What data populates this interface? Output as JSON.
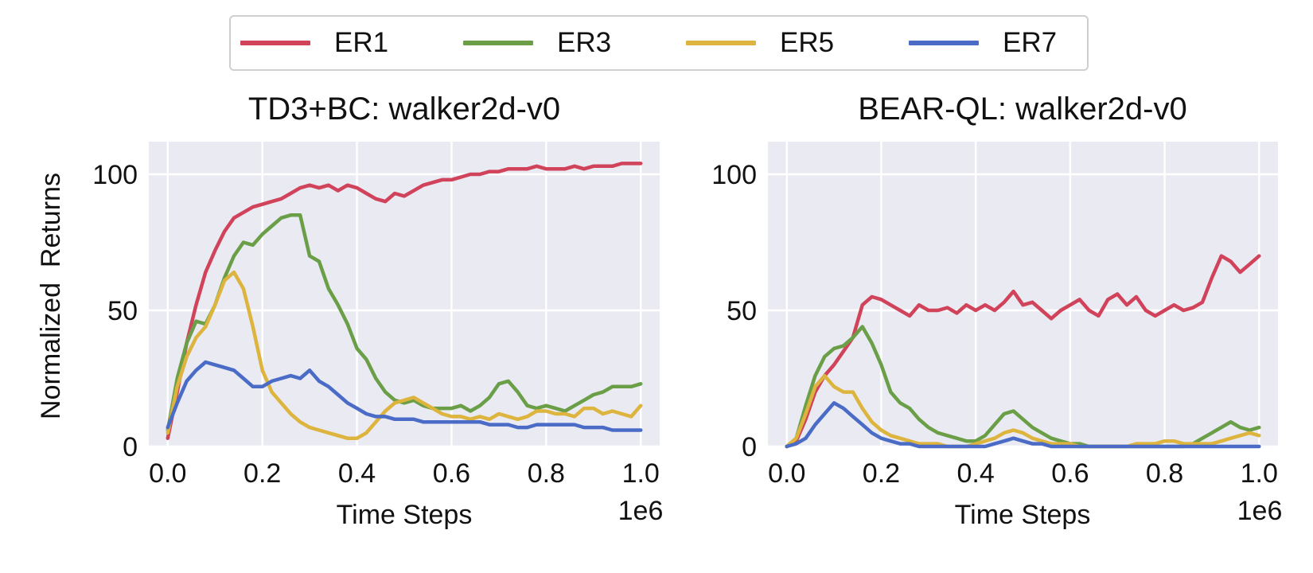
{
  "legend": {
    "items": [
      {
        "label": "ER1",
        "color": "#d1435b"
      },
      {
        "label": "ER3",
        "color": "#6a9f48"
      },
      {
        "label": "ER5",
        "color": "#ddb43e"
      },
      {
        "label": "ER7",
        "color": "#4a6bc6"
      }
    ]
  },
  "chart_data": [
    {
      "type": "line",
      "title": "TD3+BC: walker2d-v0",
      "xlabel": "Time Steps",
      "ylabel": "Normalized  Returns",
      "x_offset_text": "1e6",
      "xlim": [
        -0.04,
        1.04
      ],
      "ylim": [
        0,
        112
      ],
      "xticks": [
        0.0,
        0.2,
        0.4,
        0.6,
        0.8,
        1.0
      ],
      "xtick_labels": [
        "0.0",
        "0.2",
        "0.4",
        "0.6",
        "0.8",
        "1.0"
      ],
      "yticks": [
        0,
        50,
        100
      ],
      "ytick_labels": [
        "0",
        "50",
        "100"
      ],
      "grid": true,
      "legend": "top-center",
      "series": [
        {
          "name": "ER1",
          "color": "#d1435b",
          "x": [
            0.0,
            0.02,
            0.04,
            0.06,
            0.08,
            0.1,
            0.12,
            0.14,
            0.16,
            0.18,
            0.2,
            0.22,
            0.24,
            0.26,
            0.28,
            0.3,
            0.32,
            0.34,
            0.36,
            0.38,
            0.4,
            0.42,
            0.44,
            0.46,
            0.48,
            0.5,
            0.52,
            0.54,
            0.56,
            0.58,
            0.6,
            0.62,
            0.64,
            0.66,
            0.68,
            0.7,
            0.72,
            0.74,
            0.76,
            0.78,
            0.8,
            0.82,
            0.84,
            0.86,
            0.88,
            0.9,
            0.92,
            0.94,
            0.96,
            0.98,
            1.0
          ],
          "y": [
            3,
            20,
            38,
            52,
            64,
            72,
            79,
            84,
            86,
            88,
            89,
            90,
            91,
            93,
            95,
            96,
            95,
            96,
            94,
            96,
            95,
            93,
            91,
            90,
            93,
            92,
            94,
            96,
            97,
            98,
            98,
            99,
            100,
            100,
            101,
            101,
            102,
            102,
            102,
            103,
            102,
            102,
            102,
            103,
            102,
            103,
            103,
            103,
            104,
            104,
            104
          ]
        },
        {
          "name": "ER3",
          "color": "#6a9f48",
          "x": [
            0.0,
            0.02,
            0.04,
            0.06,
            0.08,
            0.1,
            0.12,
            0.14,
            0.16,
            0.18,
            0.2,
            0.22,
            0.24,
            0.26,
            0.28,
            0.3,
            0.32,
            0.34,
            0.36,
            0.38,
            0.4,
            0.42,
            0.44,
            0.46,
            0.48,
            0.5,
            0.52,
            0.54,
            0.56,
            0.58,
            0.6,
            0.62,
            0.64,
            0.66,
            0.68,
            0.7,
            0.72,
            0.74,
            0.76,
            0.78,
            0.8,
            0.82,
            0.84,
            0.86,
            0.88,
            0.9,
            0.92,
            0.94,
            0.96,
            0.98,
            1.0
          ],
          "y": [
            6,
            25,
            38,
            46,
            45,
            52,
            62,
            70,
            75,
            74,
            78,
            81,
            84,
            85,
            85,
            70,
            68,
            58,
            52,
            45,
            36,
            32,
            25,
            20,
            17,
            16,
            17,
            15,
            14,
            14,
            14,
            15,
            13,
            15,
            18,
            23,
            24,
            20,
            15,
            14,
            15,
            14,
            13,
            15,
            17,
            19,
            20,
            22,
            22,
            22,
            23
          ]
        },
        {
          "name": "ER5",
          "color": "#ddb43e",
          "x": [
            0.0,
            0.02,
            0.04,
            0.06,
            0.08,
            0.1,
            0.12,
            0.14,
            0.16,
            0.18,
            0.2,
            0.22,
            0.24,
            0.26,
            0.28,
            0.3,
            0.32,
            0.34,
            0.36,
            0.38,
            0.4,
            0.42,
            0.44,
            0.46,
            0.48,
            0.5,
            0.52,
            0.54,
            0.56,
            0.58,
            0.6,
            0.62,
            0.64,
            0.66,
            0.68,
            0.7,
            0.72,
            0.74,
            0.76,
            0.78,
            0.8,
            0.82,
            0.84,
            0.86,
            0.88,
            0.9,
            0.92,
            0.94,
            0.96,
            0.98,
            1.0
          ],
          "y": [
            5,
            22,
            33,
            40,
            44,
            52,
            61,
            64,
            58,
            44,
            28,
            20,
            16,
            12,
            9,
            7,
            6,
            5,
            4,
            3,
            3,
            5,
            9,
            13,
            16,
            17,
            18,
            16,
            14,
            12,
            11,
            11,
            10,
            11,
            10,
            12,
            11,
            10,
            11,
            13,
            13,
            12,
            12,
            11,
            14,
            14,
            12,
            13,
            12,
            11,
            15
          ]
        },
        {
          "name": "ER7",
          "color": "#4a6bc6",
          "x": [
            0.0,
            0.02,
            0.04,
            0.06,
            0.08,
            0.1,
            0.12,
            0.14,
            0.16,
            0.18,
            0.2,
            0.22,
            0.24,
            0.26,
            0.28,
            0.3,
            0.32,
            0.34,
            0.36,
            0.38,
            0.4,
            0.42,
            0.44,
            0.46,
            0.48,
            0.5,
            0.52,
            0.54,
            0.56,
            0.58,
            0.6,
            0.62,
            0.64,
            0.66,
            0.68,
            0.7,
            0.72,
            0.74,
            0.76,
            0.78,
            0.8,
            0.82,
            0.84,
            0.86,
            0.88,
            0.9,
            0.92,
            0.94,
            0.96,
            0.98,
            1.0
          ],
          "y": [
            7,
            16,
            24,
            28,
            31,
            30,
            29,
            28,
            25,
            22,
            22,
            24,
            25,
            26,
            25,
            28,
            24,
            22,
            19,
            16,
            14,
            12,
            11,
            11,
            10,
            10,
            10,
            9,
            9,
            9,
            9,
            9,
            9,
            9,
            8,
            8,
            8,
            7,
            7,
            8,
            8,
            8,
            8,
            8,
            7,
            7,
            7,
            6,
            6,
            6,
            6
          ]
        }
      ]
    },
    {
      "type": "line",
      "title": "BEAR-QL: walker2d-v0",
      "xlabel": "Time Steps",
      "ylabel": "",
      "x_offset_text": "1e6",
      "xlim": [
        -0.04,
        1.04
      ],
      "ylim": [
        0,
        112
      ],
      "xticks": [
        0.0,
        0.2,
        0.4,
        0.6,
        0.8,
        1.0
      ],
      "xtick_labels": [
        "0.0",
        "0.2",
        "0.4",
        "0.6",
        "0.8",
        "1.0"
      ],
      "yticks": [
        0,
        50,
        100
      ],
      "ytick_labels": [
        "0",
        "50",
        "100"
      ],
      "grid": true,
      "legend": "top-center",
      "series": [
        {
          "name": "ER1",
          "color": "#d1435b",
          "x": [
            0.0,
            0.02,
            0.04,
            0.06,
            0.08,
            0.1,
            0.12,
            0.14,
            0.16,
            0.18,
            0.2,
            0.22,
            0.24,
            0.26,
            0.28,
            0.3,
            0.32,
            0.34,
            0.36,
            0.38,
            0.4,
            0.42,
            0.44,
            0.46,
            0.48,
            0.5,
            0.52,
            0.54,
            0.56,
            0.58,
            0.6,
            0.62,
            0.64,
            0.66,
            0.68,
            0.7,
            0.72,
            0.74,
            0.76,
            0.78,
            0.8,
            0.82,
            0.84,
            0.86,
            0.88,
            0.9,
            0.92,
            0.94,
            0.96,
            0.98,
            1.0
          ],
          "y": [
            0,
            2,
            10,
            20,
            26,
            30,
            35,
            40,
            52,
            55,
            54,
            52,
            50,
            48,
            52,
            50,
            50,
            51,
            49,
            52,
            50,
            52,
            50,
            53,
            57,
            52,
            53,
            50,
            47,
            50,
            52,
            54,
            50,
            48,
            54,
            56,
            52,
            55,
            50,
            48,
            50,
            52,
            50,
            51,
            53,
            62,
            70,
            68,
            64,
            67,
            70
          ]
        },
        {
          "name": "ER3",
          "color": "#6a9f48",
          "x": [
            0.0,
            0.02,
            0.04,
            0.06,
            0.08,
            0.1,
            0.12,
            0.14,
            0.16,
            0.18,
            0.2,
            0.22,
            0.24,
            0.26,
            0.28,
            0.3,
            0.32,
            0.34,
            0.36,
            0.38,
            0.4,
            0.42,
            0.44,
            0.46,
            0.48,
            0.5,
            0.52,
            0.54,
            0.56,
            0.58,
            0.6,
            0.62,
            0.64,
            0.66,
            0.68,
            0.7,
            0.72,
            0.74,
            0.76,
            0.78,
            0.8,
            0.82,
            0.84,
            0.86,
            0.88,
            0.9,
            0.92,
            0.94,
            0.96,
            0.98,
            1.0
          ],
          "y": [
            0,
            3,
            15,
            26,
            33,
            36,
            37,
            40,
            44,
            38,
            30,
            20,
            16,
            14,
            10,
            7,
            5,
            4,
            3,
            2,
            2,
            4,
            8,
            12,
            13,
            10,
            7,
            5,
            3,
            2,
            1,
            1,
            0,
            0,
            0,
            0,
            0,
            0,
            0,
            0,
            0,
            0,
            0,
            1,
            3,
            5,
            7,
            9,
            7,
            6,
            7
          ]
        },
        {
          "name": "ER5",
          "color": "#ddb43e",
          "x": [
            0.0,
            0.02,
            0.04,
            0.06,
            0.08,
            0.1,
            0.12,
            0.14,
            0.16,
            0.18,
            0.2,
            0.22,
            0.24,
            0.26,
            0.28,
            0.3,
            0.32,
            0.34,
            0.36,
            0.38,
            0.4,
            0.42,
            0.44,
            0.46,
            0.48,
            0.5,
            0.52,
            0.54,
            0.56,
            0.58,
            0.6,
            0.62,
            0.64,
            0.66,
            0.68,
            0.7,
            0.72,
            0.74,
            0.76,
            0.78,
            0.8,
            0.82,
            0.84,
            0.86,
            0.88,
            0.9,
            0.92,
            0.94,
            0.96,
            0.98,
            1.0
          ],
          "y": [
            0,
            3,
            12,
            22,
            26,
            22,
            20,
            20,
            14,
            9,
            6,
            4,
            3,
            2,
            1,
            1,
            1,
            0,
            0,
            0,
            1,
            2,
            3,
            5,
            6,
            5,
            3,
            2,
            1,
            1,
            1,
            0,
            0,
            0,
            0,
            0,
            0,
            1,
            1,
            1,
            2,
            2,
            1,
            1,
            1,
            1,
            2,
            3,
            4,
            5,
            4
          ]
        },
        {
          "name": "ER7",
          "color": "#4a6bc6",
          "x": [
            0.0,
            0.02,
            0.04,
            0.06,
            0.08,
            0.1,
            0.12,
            0.14,
            0.16,
            0.18,
            0.2,
            0.22,
            0.24,
            0.26,
            0.28,
            0.3,
            0.32,
            0.34,
            0.36,
            0.38,
            0.4,
            0.42,
            0.44,
            0.46,
            0.48,
            0.5,
            0.52,
            0.54,
            0.56,
            0.58,
            0.6,
            0.62,
            0.64,
            0.66,
            0.68,
            0.7,
            0.72,
            0.74,
            0.76,
            0.78,
            0.8,
            0.82,
            0.84,
            0.86,
            0.88,
            0.9,
            0.92,
            0.94,
            0.96,
            0.98,
            1.0
          ],
          "y": [
            0,
            1,
            3,
            8,
            12,
            16,
            14,
            11,
            8,
            5,
            3,
            2,
            1,
            1,
            0,
            0,
            0,
            0,
            0,
            0,
            0,
            0,
            1,
            2,
            3,
            2,
            1,
            1,
            0,
            0,
            0,
            0,
            0,
            0,
            0,
            0,
            0,
            0,
            0,
            0,
            0,
            0,
            0,
            0,
            0,
            0,
            0,
            0,
            0,
            0,
            0
          ]
        }
      ]
    }
  ]
}
